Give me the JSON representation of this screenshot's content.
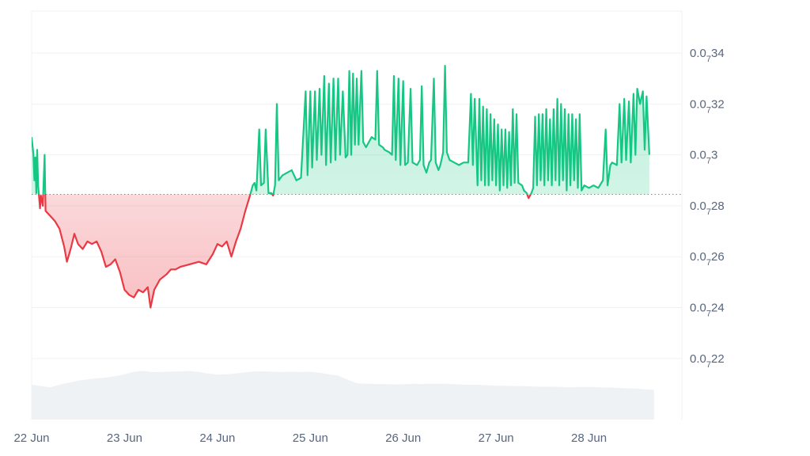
{
  "chart_data": {
    "type": "area",
    "title": "",
    "xlabel": "",
    "ylabel": "",
    "x_tick_labels": [
      "22 Jun",
      "23 Jun",
      "24 Jun",
      "25 Jun",
      "26 Jun",
      "27 Jun",
      "28 Jun"
    ],
    "y_ticks": [
      {
        "value": 0.22,
        "prefix": "0.0",
        "sub": "7",
        "suffix": "22"
      },
      {
        "value": 0.24,
        "prefix": "0.0",
        "sub": "7",
        "suffix": "24"
      },
      {
        "value": 0.26,
        "prefix": "0.0",
        "sub": "7",
        "suffix": "26"
      },
      {
        "value": 0.28,
        "prefix": "0.0",
        "sub": "7",
        "suffix": "28"
      },
      {
        "value": 0.3,
        "prefix": "0.0",
        "sub": "7",
        "suffix": "3"
      },
      {
        "value": 0.32,
        "prefix": "0.0",
        "sub": "7",
        "suffix": "32"
      },
      {
        "value": 0.34,
        "prefix": "0.0",
        "sub": "7",
        "suffix": "34"
      }
    ],
    "ylim": [
      0.196,
      0.3565
    ],
    "xlim": [
      0,
      7
    ],
    "baseline": 0.2845,
    "colors": {
      "up": "#16c784",
      "down": "#ea3943",
      "up_fill": "#d6f5e8",
      "down_fill": "#f9c9cc",
      "volume": "#eff2f5",
      "grid": "#eff2f5",
      "baseline": "#808a9d"
    },
    "grid": true,
    "series": [
      {
        "values": [
          [
            0.0,
            0.307
          ],
          [
            0.02,
            0.3
          ],
          [
            0.03,
            0.29
          ],
          [
            0.04,
            0.299
          ],
          [
            0.05,
            0.285
          ],
          [
            0.06,
            0.302
          ],
          [
            0.07,
            0.288
          ],
          [
            0.09,
            0.279
          ],
          [
            0.1,
            0.284
          ],
          [
            0.12,
            0.28
          ],
          [
            0.14,
            0.3
          ],
          [
            0.15,
            0.278
          ],
          [
            0.2,
            0.276
          ],
          [
            0.25,
            0.274
          ],
          [
            0.3,
            0.271
          ],
          [
            0.35,
            0.264
          ],
          [
            0.38,
            0.258
          ],
          [
            0.42,
            0.263
          ],
          [
            0.46,
            0.269
          ],
          [
            0.5,
            0.265
          ],
          [
            0.55,
            0.263
          ],
          [
            0.6,
            0.266
          ],
          [
            0.65,
            0.265
          ],
          [
            0.7,
            0.266
          ],
          [
            0.75,
            0.262
          ],
          [
            0.8,
            0.256
          ],
          [
            0.85,
            0.257
          ],
          [
            0.9,
            0.259
          ],
          [
            0.95,
            0.254
          ],
          [
            1.0,
            0.247
          ],
          [
            1.05,
            0.245
          ],
          [
            1.1,
            0.244
          ],
          [
            1.15,
            0.247
          ],
          [
            1.2,
            0.246
          ],
          [
            1.25,
            0.248
          ],
          [
            1.28,
            0.24
          ],
          [
            1.32,
            0.247
          ],
          [
            1.38,
            0.251
          ],
          [
            1.45,
            0.253
          ],
          [
            1.5,
            0.255
          ],
          [
            1.55,
            0.255
          ],
          [
            1.6,
            0.256
          ],
          [
            1.7,
            0.257
          ],
          [
            1.8,
            0.258
          ],
          [
            1.88,
            0.257
          ],
          [
            1.95,
            0.261
          ],
          [
            2.0,
            0.265
          ],
          [
            2.05,
            0.264
          ],
          [
            2.1,
            0.266
          ],
          [
            2.15,
            0.26
          ],
          [
            2.2,
            0.266
          ],
          [
            2.22,
            0.268
          ],
          [
            2.25,
            0.271
          ],
          [
            2.3,
            0.278
          ],
          [
            2.35,
            0.284
          ],
          [
            2.38,
            0.288
          ],
          [
            2.4,
            0.289
          ],
          [
            2.42,
            0.286
          ],
          [
            2.45,
            0.31
          ],
          [
            2.47,
            0.288
          ],
          [
            2.5,
            0.289
          ],
          [
            2.52,
            0.31
          ],
          [
            2.55,
            0.285
          ],
          [
            2.58,
            0.285
          ],
          [
            2.6,
            0.284
          ],
          [
            2.62,
            0.288
          ],
          [
            2.64,
            0.32
          ],
          [
            2.66,
            0.29
          ],
          [
            2.7,
            0.292
          ],
          [
            2.8,
            0.294
          ],
          [
            2.85,
            0.29
          ],
          [
            2.9,
            0.291
          ],
          [
            2.95,
            0.325
          ],
          [
            2.97,
            0.292
          ],
          [
            3.0,
            0.325
          ],
          [
            3.02,
            0.295
          ],
          [
            3.05,
            0.325
          ],
          [
            3.07,
            0.298
          ],
          [
            3.1,
            0.326
          ],
          [
            3.12,
            0.3
          ],
          [
            3.15,
            0.331
          ],
          [
            3.17,
            0.296
          ],
          [
            3.2,
            0.328
          ],
          [
            3.22,
            0.297
          ],
          [
            3.25,
            0.33
          ],
          [
            3.27,
            0.298
          ],
          [
            3.3,
            0.33
          ],
          [
            3.32,
            0.3
          ],
          [
            3.35,
            0.325
          ],
          [
            3.38,
            0.299
          ],
          [
            3.4,
            0.3
          ],
          [
            3.42,
            0.333
          ],
          [
            3.44,
            0.3
          ],
          [
            3.46,
            0.332
          ],
          [
            3.48,
            0.304
          ],
          [
            3.5,
            0.33
          ],
          [
            3.52,
            0.304
          ],
          [
            3.55,
            0.333
          ],
          [
            3.57,
            0.305
          ],
          [
            3.6,
            0.303
          ],
          [
            3.63,
            0.305
          ],
          [
            3.66,
            0.307
          ],
          [
            3.7,
            0.306
          ],
          [
            3.72,
            0.333
          ],
          [
            3.74,
            0.304
          ],
          [
            3.78,
            0.303
          ],
          [
            3.8,
            0.302
          ],
          [
            3.85,
            0.301
          ],
          [
            3.88,
            0.3
          ],
          [
            3.9,
            0.331
          ],
          [
            3.92,
            0.298
          ],
          [
            3.95,
            0.33
          ],
          [
            3.97,
            0.296
          ],
          [
            4.0,
            0.329
          ],
          [
            4.02,
            0.296
          ],
          [
            4.05,
            0.297
          ],
          [
            4.08,
            0.326
          ],
          [
            4.1,
            0.297
          ],
          [
            4.15,
            0.296
          ],
          [
            4.18,
            0.298
          ],
          [
            4.2,
            0.327
          ],
          [
            4.22,
            0.296
          ],
          [
            4.25,
            0.293
          ],
          [
            4.28,
            0.297
          ],
          [
            4.3,
            0.298
          ],
          [
            4.33,
            0.33
          ],
          [
            4.35,
            0.297
          ],
          [
            4.38,
            0.294
          ],
          [
            4.4,
            0.296
          ],
          [
            4.43,
            0.301
          ],
          [
            4.45,
            0.335
          ],
          [
            4.47,
            0.301
          ],
          [
            4.5,
            0.298
          ],
          [
            4.55,
            0.297
          ],
          [
            4.6,
            0.296
          ],
          [
            4.65,
            0.297
          ],
          [
            4.7,
            0.297
          ],
          [
            4.73,
            0.324
          ],
          [
            4.75,
            0.296
          ],
          [
            4.77,
            0.322
          ],
          [
            4.8,
            0.288
          ],
          [
            4.82,
            0.322
          ],
          [
            4.84,
            0.29
          ],
          [
            4.86,
            0.319
          ],
          [
            4.88,
            0.288
          ],
          [
            4.9,
            0.318
          ],
          [
            4.92,
            0.288
          ],
          [
            4.94,
            0.316
          ],
          [
            4.96,
            0.29
          ],
          [
            4.98,
            0.314
          ],
          [
            5.0,
            0.288
          ],
          [
            5.02,
            0.312
          ],
          [
            5.04,
            0.286
          ],
          [
            5.06,
            0.31
          ],
          [
            5.08,
            0.288
          ],
          [
            5.1,
            0.31
          ],
          [
            5.12,
            0.287
          ],
          [
            5.14,
            0.309
          ],
          [
            5.16,
            0.288
          ],
          [
            5.18,
            0.318
          ],
          [
            5.2,
            0.289
          ],
          [
            5.22,
            0.316
          ],
          [
            5.24,
            0.289
          ],
          [
            5.28,
            0.288
          ],
          [
            5.3,
            0.286
          ],
          [
            5.33,
            0.285
          ],
          [
            5.35,
            0.283
          ],
          [
            5.38,
            0.285
          ],
          [
            5.4,
            0.287
          ],
          [
            5.42,
            0.315
          ],
          [
            5.44,
            0.288
          ],
          [
            5.46,
            0.316
          ],
          [
            5.48,
            0.29
          ],
          [
            5.5,
            0.316
          ],
          [
            5.52,
            0.288
          ],
          [
            5.54,
            0.318
          ],
          [
            5.56,
            0.29
          ],
          [
            5.58,
            0.314
          ],
          [
            5.6,
            0.288
          ],
          [
            5.62,
            0.318
          ],
          [
            5.64,
            0.29
          ],
          [
            5.66,
            0.322
          ],
          [
            5.68,
            0.288
          ],
          [
            5.7,
            0.32
          ],
          [
            5.72,
            0.29
          ],
          [
            5.74,
            0.318
          ],
          [
            5.76,
            0.286
          ],
          [
            5.78,
            0.316
          ],
          [
            5.8,
            0.288
          ],
          [
            5.82,
            0.316
          ],
          [
            5.84,
            0.29
          ],
          [
            5.86,
            0.314
          ],
          [
            5.88,
            0.287
          ],
          [
            5.9,
            0.316
          ],
          [
            5.92,
            0.286
          ],
          [
            5.95,
            0.288
          ],
          [
            6.0,
            0.287
          ],
          [
            6.05,
            0.288
          ],
          [
            6.1,
            0.287
          ],
          [
            6.15,
            0.29
          ],
          [
            6.18,
            0.31
          ],
          [
            6.2,
            0.288
          ],
          [
            6.23,
            0.296
          ],
          [
            6.25,
            0.297
          ],
          [
            6.3,
            0.296
          ],
          [
            6.33,
            0.32
          ],
          [
            6.35,
            0.297
          ],
          [
            6.38,
            0.322
          ],
          [
            6.4,
            0.298
          ],
          [
            6.43,
            0.321
          ],
          [
            6.45,
            0.297
          ],
          [
            6.48,
            0.324
          ],
          [
            6.5,
            0.3
          ],
          [
            6.52,
            0.326
          ],
          [
            6.55,
            0.32
          ],
          [
            6.58,
            0.325
          ],
          [
            6.6,
            0.302
          ],
          [
            6.62,
            0.323
          ],
          [
            6.65,
            0.3
          ]
        ]
      }
    ],
    "volume": [
      [
        0.0,
        0.2097
      ],
      [
        0.1,
        0.2092
      ],
      [
        0.2,
        0.2087
      ],
      [
        0.3,
        0.2097
      ],
      [
        0.4,
        0.2105
      ],
      [
        0.5,
        0.2113
      ],
      [
        0.6,
        0.2118
      ],
      [
        0.7,
        0.2122
      ],
      [
        0.8,
        0.2125
      ],
      [
        0.9,
        0.213
      ],
      [
        1.0,
        0.2138
      ],
      [
        1.1,
        0.2148
      ],
      [
        1.2,
        0.2151
      ],
      [
        1.3,
        0.2147
      ],
      [
        1.4,
        0.2147
      ],
      [
        1.5,
        0.2149
      ],
      [
        1.6,
        0.2149
      ],
      [
        1.7,
        0.2151
      ],
      [
        1.8,
        0.2147
      ],
      [
        1.9,
        0.2141
      ],
      [
        2.0,
        0.2137
      ],
      [
        2.1,
        0.2138
      ],
      [
        2.2,
        0.2141
      ],
      [
        2.3,
        0.2146
      ],
      [
        2.4,
        0.2149
      ],
      [
        2.5,
        0.215
      ],
      [
        2.6,
        0.2148
      ],
      [
        2.7,
        0.2147
      ],
      [
        2.8,
        0.2148
      ],
      [
        2.9,
        0.2147
      ],
      [
        3.0,
        0.2148
      ],
      [
        3.1,
        0.2144
      ],
      [
        3.2,
        0.2138
      ],
      [
        3.3,
        0.2133
      ],
      [
        3.4,
        0.2117
      ],
      [
        3.5,
        0.2103
      ],
      [
        3.6,
        0.2101
      ],
      [
        3.7,
        0.21
      ],
      [
        3.8,
        0.21
      ],
      [
        3.9,
        0.2098
      ],
      [
        4.0,
        0.2099
      ],
      [
        4.1,
        0.2101
      ],
      [
        4.2,
        0.21
      ],
      [
        4.3,
        0.2101
      ],
      [
        4.4,
        0.2101
      ],
      [
        4.5,
        0.21
      ],
      [
        4.6,
        0.2098
      ],
      [
        4.7,
        0.2097
      ],
      [
        4.8,
        0.2097
      ],
      [
        4.9,
        0.2095
      ],
      [
        5.0,
        0.2093
      ],
      [
        5.1,
        0.2093
      ],
      [
        5.2,
        0.2092
      ],
      [
        5.3,
        0.2092
      ],
      [
        5.4,
        0.209
      ],
      [
        5.5,
        0.2089
      ],
      [
        5.6,
        0.2089
      ],
      [
        5.7,
        0.2088
      ],
      [
        5.8,
        0.2087
      ],
      [
        5.9,
        0.2088
      ],
      [
        6.0,
        0.2088
      ],
      [
        6.1,
        0.2087
      ],
      [
        6.2,
        0.2086
      ],
      [
        6.3,
        0.2085
      ],
      [
        6.4,
        0.2083
      ],
      [
        6.5,
        0.2082
      ],
      [
        6.6,
        0.2079
      ],
      [
        6.7,
        0.2077
      ]
    ]
  }
}
